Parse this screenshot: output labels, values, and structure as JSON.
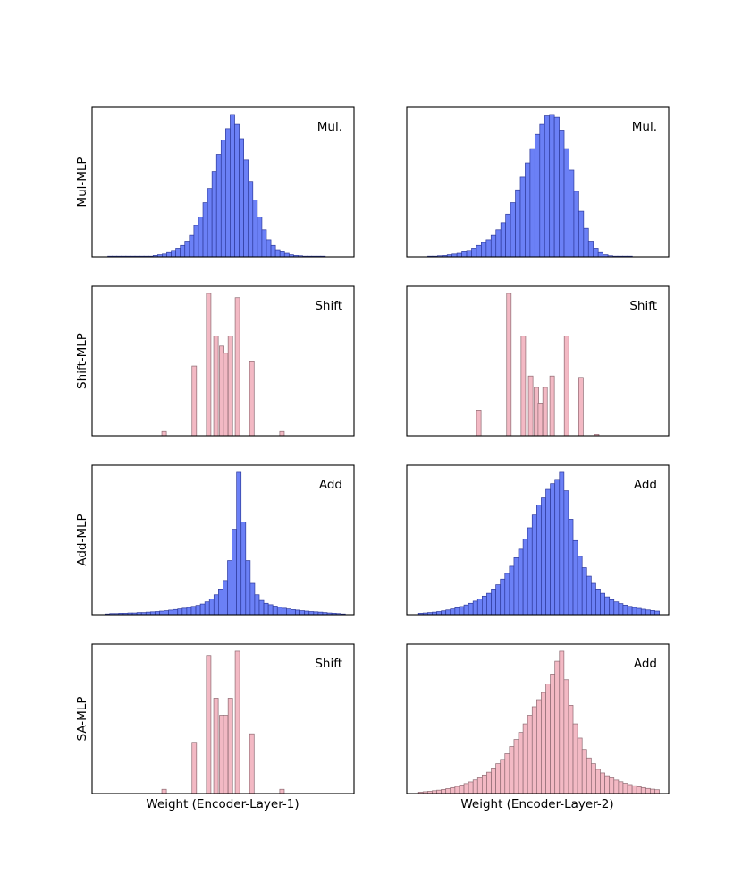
{
  "figure": {
    "column_xlabels": [
      "Weight (Encoder-Layer-1)",
      "Weight (Encoder-Layer-2)"
    ],
    "row_ylabels": [
      "Mul-MLP",
      "Shift-MLP",
      "Add-MLP",
      "SA-MLP"
    ]
  },
  "colors": {
    "blue_fill": "#6b80f6",
    "blue_edge": "#2e3a9c",
    "pink_fill": "#f3b9c4",
    "pink_edge": "#8e6a72"
  },
  "chart_data": [
    {
      "type": "bar",
      "subtype": "histogram",
      "panel": "Mul-MLP / Encoder-Layer-1",
      "annotation": "Mul.",
      "ylabel": "Mul-MLP",
      "xlabel": "",
      "style": "blue",
      "xlim": [
        0,
        1
      ],
      "ylim": [
        0,
        1.05
      ],
      "bins": {
        "start": 0.06,
        "width": 0.0173
      },
      "values": [
        0.005,
        0.005,
        0.005,
        0.005,
        0.005,
        0.005,
        0.005,
        0.005,
        0.005,
        0.005,
        0.01,
        0.015,
        0.02,
        0.03,
        0.045,
        0.06,
        0.08,
        0.11,
        0.15,
        0.22,
        0.28,
        0.38,
        0.48,
        0.6,
        0.72,
        0.82,
        0.9,
        1.0,
        0.93,
        0.83,
        0.68,
        0.53,
        0.4,
        0.28,
        0.19,
        0.12,
        0.08,
        0.05,
        0.035,
        0.025,
        0.015,
        0.01,
        0.008,
        0.005,
        0.005,
        0.005,
        0.005,
        0.005
      ]
    },
    {
      "type": "bar",
      "subtype": "histogram",
      "panel": "Mul-MLP / Encoder-Layer-2",
      "annotation": "Mul.",
      "ylabel": "",
      "xlabel": "",
      "style": "blue",
      "xlim": [
        0,
        1
      ],
      "ylim": [
        0,
        1.05
      ],
      "bins": {
        "start": 0.08,
        "width": 0.0186
      },
      "values": [
        0.005,
        0.005,
        0.008,
        0.01,
        0.015,
        0.02,
        0.025,
        0.035,
        0.045,
        0.06,
        0.08,
        0.1,
        0.12,
        0.15,
        0.19,
        0.24,
        0.3,
        0.38,
        0.47,
        0.56,
        0.66,
        0.76,
        0.86,
        0.93,
        0.99,
        1.0,
        0.98,
        0.89,
        0.76,
        0.61,
        0.46,
        0.32,
        0.2,
        0.11,
        0.06,
        0.03,
        0.015,
        0.008,
        0.005,
        0.005,
        0.005,
        0.005
      ]
    },
    {
      "type": "bar",
      "subtype": "histogram",
      "panel": "Shift-MLP / Encoder-Layer-1",
      "annotation": "Shift",
      "ylabel": "Shift-MLP",
      "xlabel": "",
      "style": "pink",
      "xlim": [
        0,
        1
      ],
      "ylim": [
        0,
        1.05
      ],
      "bars": [
        {
          "x": 0.275,
          "value": 0.03
        },
        {
          "x": 0.39,
          "value": 0.49
        },
        {
          "x": 0.445,
          "value": 1.0
        },
        {
          "x": 0.473,
          "value": 0.7
        },
        {
          "x": 0.495,
          "value": 0.63
        },
        {
          "x": 0.51,
          "value": 0.58
        },
        {
          "x": 0.528,
          "value": 0.7
        },
        {
          "x": 0.555,
          "value": 0.97
        },
        {
          "x": 0.61,
          "value": 0.52
        },
        {
          "x": 0.725,
          "value": 0.03
        }
      ],
      "bar_width": 0.0173
    },
    {
      "type": "bar",
      "subtype": "histogram",
      "panel": "Shift-MLP / Encoder-Layer-2",
      "annotation": "Shift",
      "ylabel": "",
      "xlabel": "",
      "style": "pink",
      "xlim": [
        0,
        1
      ],
      "ylim": [
        0,
        1.05
      ],
      "bars": [
        {
          "x": 0.275,
          "value": 0.18
        },
        {
          "x": 0.39,
          "value": 1.0
        },
        {
          "x": 0.445,
          "value": 0.7
        },
        {
          "x": 0.473,
          "value": 0.42
        },
        {
          "x": 0.495,
          "value": 0.34
        },
        {
          "x": 0.51,
          "value": 0.23
        },
        {
          "x": 0.528,
          "value": 0.34
        },
        {
          "x": 0.555,
          "value": 0.42
        },
        {
          "x": 0.61,
          "value": 0.7
        },
        {
          "x": 0.665,
          "value": 0.41
        },
        {
          "x": 0.725,
          "value": 0.01
        }
      ],
      "bar_width": 0.0173
    },
    {
      "type": "bar",
      "subtype": "histogram",
      "panel": "Add-MLP / Encoder-Layer-1",
      "annotation": "Add",
      "ylabel": "Add-MLP",
      "xlabel": "",
      "style": "blue",
      "xlim": [
        0,
        1
      ],
      "ylim": [
        0,
        1.05
      ],
      "bins": {
        "start": 0.05,
        "width": 0.0173
      },
      "values": [
        0.005,
        0.008,
        0.008,
        0.01,
        0.01,
        0.012,
        0.012,
        0.015,
        0.015,
        0.018,
        0.02,
        0.022,
        0.025,
        0.028,
        0.032,
        0.036,
        0.04,
        0.045,
        0.05,
        0.058,
        0.065,
        0.075,
        0.09,
        0.11,
        0.14,
        0.18,
        0.24,
        0.38,
        0.6,
        1.0,
        0.65,
        0.38,
        0.22,
        0.14,
        0.1,
        0.08,
        0.07,
        0.06,
        0.052,
        0.045,
        0.04,
        0.035,
        0.032,
        0.028,
        0.025,
        0.022,
        0.02,
        0.018,
        0.015,
        0.012,
        0.01,
        0.008,
        0.005
      ]
    },
    {
      "type": "bar",
      "subtype": "histogram",
      "panel": "Add-MLP / Encoder-Layer-2",
      "annotation": "Add",
      "ylabel": "",
      "xlabel": "",
      "style": "blue",
      "xlim": [
        0,
        1
      ],
      "ylim": [
        0,
        1.05
      ],
      "bins": {
        "start": 0.045,
        "width": 0.01735
      },
      "values": [
        0.01,
        0.012,
        0.015,
        0.018,
        0.022,
        0.027,
        0.033,
        0.04,
        0.048,
        0.057,
        0.068,
        0.08,
        0.095,
        0.11,
        0.13,
        0.15,
        0.18,
        0.21,
        0.25,
        0.29,
        0.34,
        0.4,
        0.46,
        0.53,
        0.61,
        0.7,
        0.77,
        0.82,
        0.88,
        0.92,
        0.95,
        1.0,
        0.87,
        0.67,
        0.52,
        0.41,
        0.33,
        0.27,
        0.22,
        0.18,
        0.15,
        0.125,
        0.105,
        0.09,
        0.078,
        0.067,
        0.058,
        0.05,
        0.044,
        0.038,
        0.033,
        0.029,
        0.025
      ]
    },
    {
      "type": "bar",
      "subtype": "histogram",
      "panel": "SA-MLP / Encoder-Layer-1",
      "annotation": "Shift",
      "ylabel": "SA-MLP",
      "xlabel": "Weight (Encoder-Layer-1)",
      "style": "pink",
      "xlim": [
        0,
        1
      ],
      "ylim": [
        0,
        1.05
      ],
      "bars": [
        {
          "x": 0.275,
          "value": 0.03
        },
        {
          "x": 0.39,
          "value": 0.36
        },
        {
          "x": 0.445,
          "value": 0.97
        },
        {
          "x": 0.473,
          "value": 0.67
        },
        {
          "x": 0.495,
          "value": 0.55
        },
        {
          "x": 0.51,
          "value": 0.55
        },
        {
          "x": 0.528,
          "value": 0.67
        },
        {
          "x": 0.555,
          "value": 1.0
        },
        {
          "x": 0.61,
          "value": 0.42
        },
        {
          "x": 0.725,
          "value": 0.03
        }
      ],
      "bar_width": 0.0173
    },
    {
      "type": "bar",
      "subtype": "histogram",
      "panel": "SA-MLP / Encoder-Layer-2",
      "annotation": "Add",
      "ylabel": "",
      "xlabel": "Weight (Encoder-Layer-2)",
      "style": "pink",
      "xlim": [
        0,
        1
      ],
      "ylim": [
        0,
        1.05
      ],
      "bins": {
        "start": 0.045,
        "width": 0.01735
      },
      "values": [
        0.01,
        0.013,
        0.016,
        0.02,
        0.024,
        0.029,
        0.035,
        0.042,
        0.05,
        0.06,
        0.07,
        0.082,
        0.096,
        0.11,
        0.13,
        0.15,
        0.18,
        0.21,
        0.24,
        0.28,
        0.33,
        0.38,
        0.43,
        0.49,
        0.55,
        0.61,
        0.66,
        0.71,
        0.77,
        0.84,
        0.93,
        1.0,
        0.8,
        0.62,
        0.49,
        0.39,
        0.31,
        0.25,
        0.21,
        0.17,
        0.145,
        0.125,
        0.11,
        0.095,
        0.083,
        0.072,
        0.063,
        0.055,
        0.048,
        0.042,
        0.036,
        0.031,
        0.027
      ]
    }
  ]
}
